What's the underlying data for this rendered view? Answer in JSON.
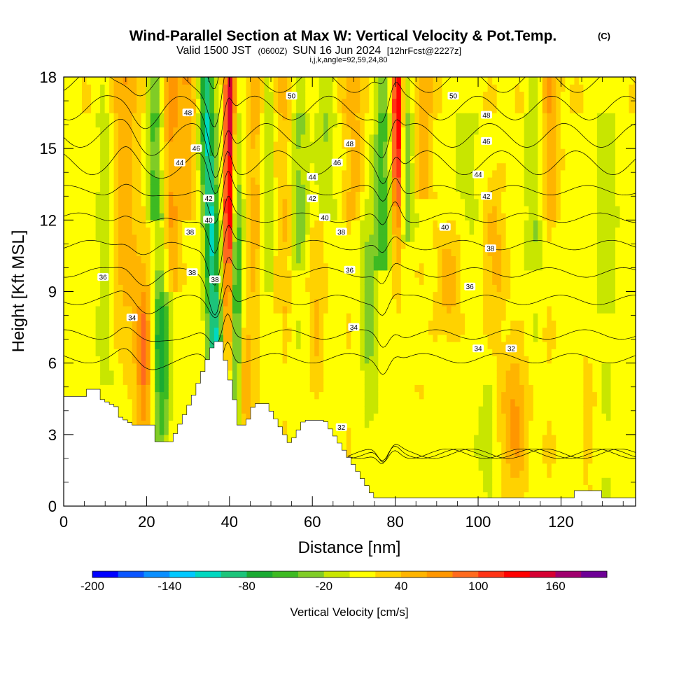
{
  "title": {
    "main": "Wind-Parallel Section at Max W: Vertical Velocity & Pot.Temp.",
    "copyright": "(C)",
    "valid_prefix": "Valid 1500 JST",
    "valid_utc": "(0600Z)",
    "valid_date": "SUN 16 Jun 2024",
    "forecast": "[12hrFcst@2227z]",
    "ijk": "i,j,k,angle=92,59,24,80"
  },
  "chart_data": {
    "type": "heatmap",
    "xlabel": "Distance [nm]",
    "ylabel": "Height [Kft MSL]",
    "xlim": [
      0,
      138
    ],
    "ylim": [
      0,
      18
    ],
    "x_ticks": [
      "0",
      "20",
      "40",
      "60",
      "80",
      "100",
      "120"
    ],
    "y_ticks": [
      "0",
      "3",
      "6",
      "9",
      "12",
      "15",
      "18"
    ],
    "colorbar": {
      "label": "Vertical Velocity [cm/s]",
      "tick_labels": [
        "-200",
        "-140",
        "-80",
        "-20",
        "40",
        "100",
        "160"
      ],
      "range": [
        -200,
        200
      ],
      "step": 20,
      "colors": [
        "#0000ff",
        "#0a55ff",
        "#0b8fff",
        "#00c8ff",
        "#00d8c0",
        "#1cc47a",
        "#1aaa32",
        "#3dba22",
        "#80cc26",
        "#c8e600",
        "#ffff00",
        "#ffd200",
        "#ffb400",
        "#ff9600",
        "#ff6a1e",
        "#ff3214",
        "#ff0000",
        "#d60032",
        "#a0006e",
        "#6e0096"
      ]
    },
    "theta_contour_labels": [
      {
        "x": 9.5,
        "y": 9.6,
        "v": "36"
      },
      {
        "x": 16.5,
        "y": 7.9,
        "v": "34"
      },
      {
        "x": 30.5,
        "y": 11.5,
        "v": "38"
      },
      {
        "x": 31,
        "y": 9.8,
        "v": "38"
      },
      {
        "x": 36.5,
        "y": 9.5,
        "v": "38"
      },
      {
        "x": 35,
        "y": 12.0,
        "v": "40"
      },
      {
        "x": 35,
        "y": 12.9,
        "v": "42"
      },
      {
        "x": 28,
        "y": 14.4,
        "v": "44"
      },
      {
        "x": 32,
        "y": 15.0,
        "v": "46"
      },
      {
        "x": 30,
        "y": 16.5,
        "v": "48"
      },
      {
        "x": 55,
        "y": 17.2,
        "v": "50"
      },
      {
        "x": 69,
        "y": 15.2,
        "v": "48"
      },
      {
        "x": 66,
        "y": 14.4,
        "v": "46"
      },
      {
        "x": 60,
        "y": 13.8,
        "v": "44"
      },
      {
        "x": 60,
        "y": 12.9,
        "v": "42"
      },
      {
        "x": 63,
        "y": 12.1,
        "v": "40"
      },
      {
        "x": 67,
        "y": 11.5,
        "v": "38"
      },
      {
        "x": 69,
        "y": 9.9,
        "v": "36"
      },
      {
        "x": 70,
        "y": 7.5,
        "v": "34"
      },
      {
        "x": 67,
        "y": 3.3,
        "v": "32"
      },
      {
        "x": 94,
        "y": 17.2,
        "v": "50"
      },
      {
        "x": 102,
        "y": 16.4,
        "v": "48"
      },
      {
        "x": 102,
        "y": 15.3,
        "v": "46"
      },
      {
        "x": 100,
        "y": 13.9,
        "v": "44"
      },
      {
        "x": 102,
        "y": 13.0,
        "v": "42"
      },
      {
        "x": 92,
        "y": 11.7,
        "v": "40"
      },
      {
        "x": 103,
        "y": 10.8,
        "v": "38"
      },
      {
        "x": 98,
        "y": 9.2,
        "v": "36"
      },
      {
        "x": 100,
        "y": 6.6,
        "v": "34"
      },
      {
        "x": 108,
        "y": 6.6,
        "v": "32"
      }
    ]
  }
}
